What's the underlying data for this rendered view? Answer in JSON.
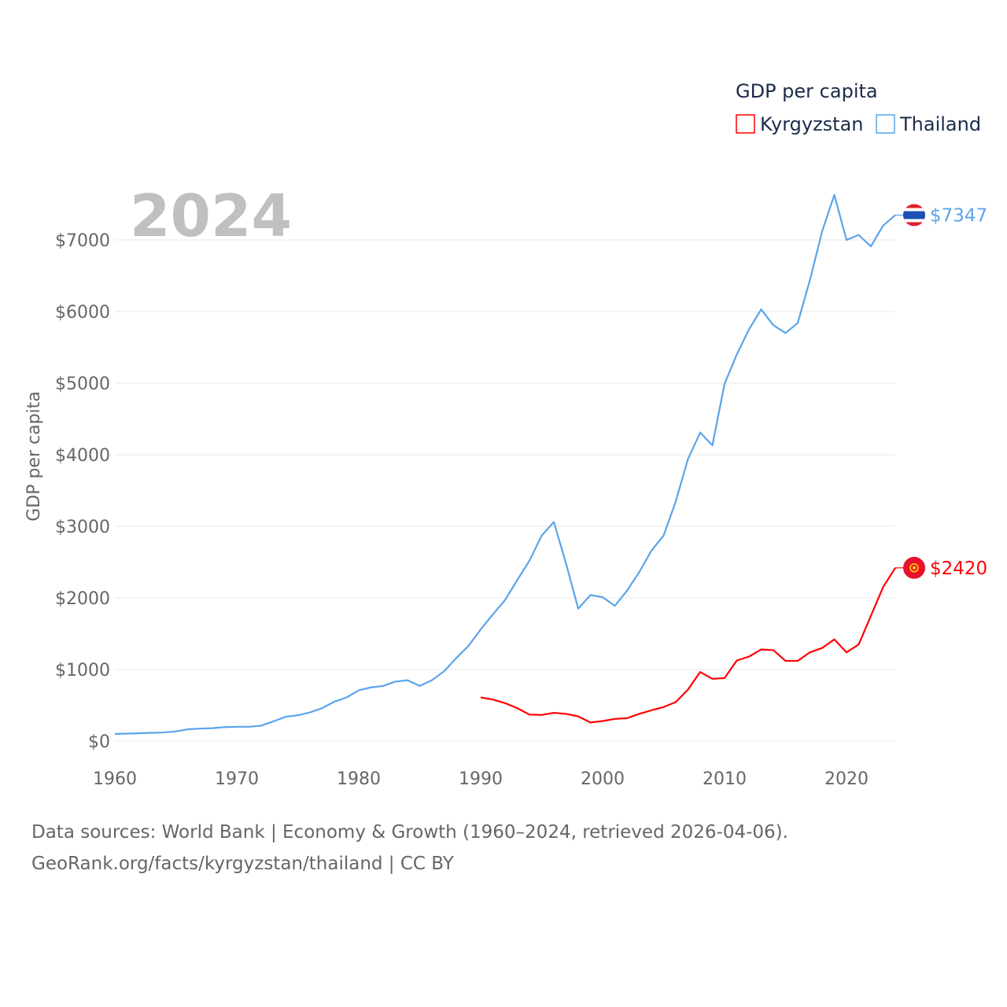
{
  "chart_data": {
    "type": "line",
    "title": "GDP per capita",
    "ylabel": "GDP per capita",
    "xlabel": "",
    "year_label": "2024",
    "xlim": [
      1960,
      2024
    ],
    "ylim": [
      0,
      7700
    ],
    "x_ticks": [
      "1960",
      "1970",
      "1980",
      "1990",
      "2000",
      "2010",
      "2020"
    ],
    "y_ticks": [
      "$0",
      "$1000",
      "$2000",
      "$3000",
      "$4000",
      "$5000",
      "$6000",
      "$7000"
    ],
    "y_tick_values": [
      0,
      1000,
      2000,
      3000,
      4000,
      5000,
      6000,
      7000
    ],
    "x_tick_values": [
      1960,
      1970,
      1980,
      1990,
      2000,
      2010,
      2020
    ],
    "grid": true,
    "legend_placement": "top-right",
    "series": [
      {
        "name": "Kyrgyzstan",
        "color": "#ff0000",
        "end_label": "$2420",
        "start_year": 1990,
        "values": [
          610,
          580,
          530,
          460,
          370,
          365,
          395,
          380,
          345,
          260,
          280,
          310,
          320,
          380,
          430,
          475,
          545,
          720,
          965,
          870,
          880,
          1125,
          1180,
          1280,
          1270,
          1120,
          1120,
          1240,
          1300,
          1420,
          1240,
          1350,
          1750,
          2150,
          2420
        ]
      },
      {
        "name": "Thailand",
        "color": "#5ba4ea",
        "end_label": "$7347",
        "start_year": 1960,
        "values": [
          100,
          104,
          110,
          115,
          120,
          135,
          165,
          175,
          180,
          195,
          200,
          200,
          215,
          275,
          340,
          360,
          400,
          460,
          550,
          610,
          710,
          750,
          770,
          830,
          850,
          770,
          850,
          975,
          1160,
          1330,
          1560,
          1770,
          1970,
          2250,
          2520,
          2870,
          3060,
          2480,
          1850,
          2040,
          2010,
          1890,
          2100,
          2360,
          2660,
          2870,
          3350,
          3940,
          4310,
          4130,
          4990,
          5400,
          5750,
          6030,
          5810,
          5700,
          5840,
          6440,
          7120,
          7630,
          7000,
          7070,
          6910,
          7200,
          7347
        ]
      }
    ]
  },
  "footer": {
    "line1": "Data sources: World Bank | Economy & Growth (1960–2024, retrieved 2026-04-06).",
    "line2": "GeoRank.org/facts/kyrgyzstan/thailand | CC BY"
  }
}
